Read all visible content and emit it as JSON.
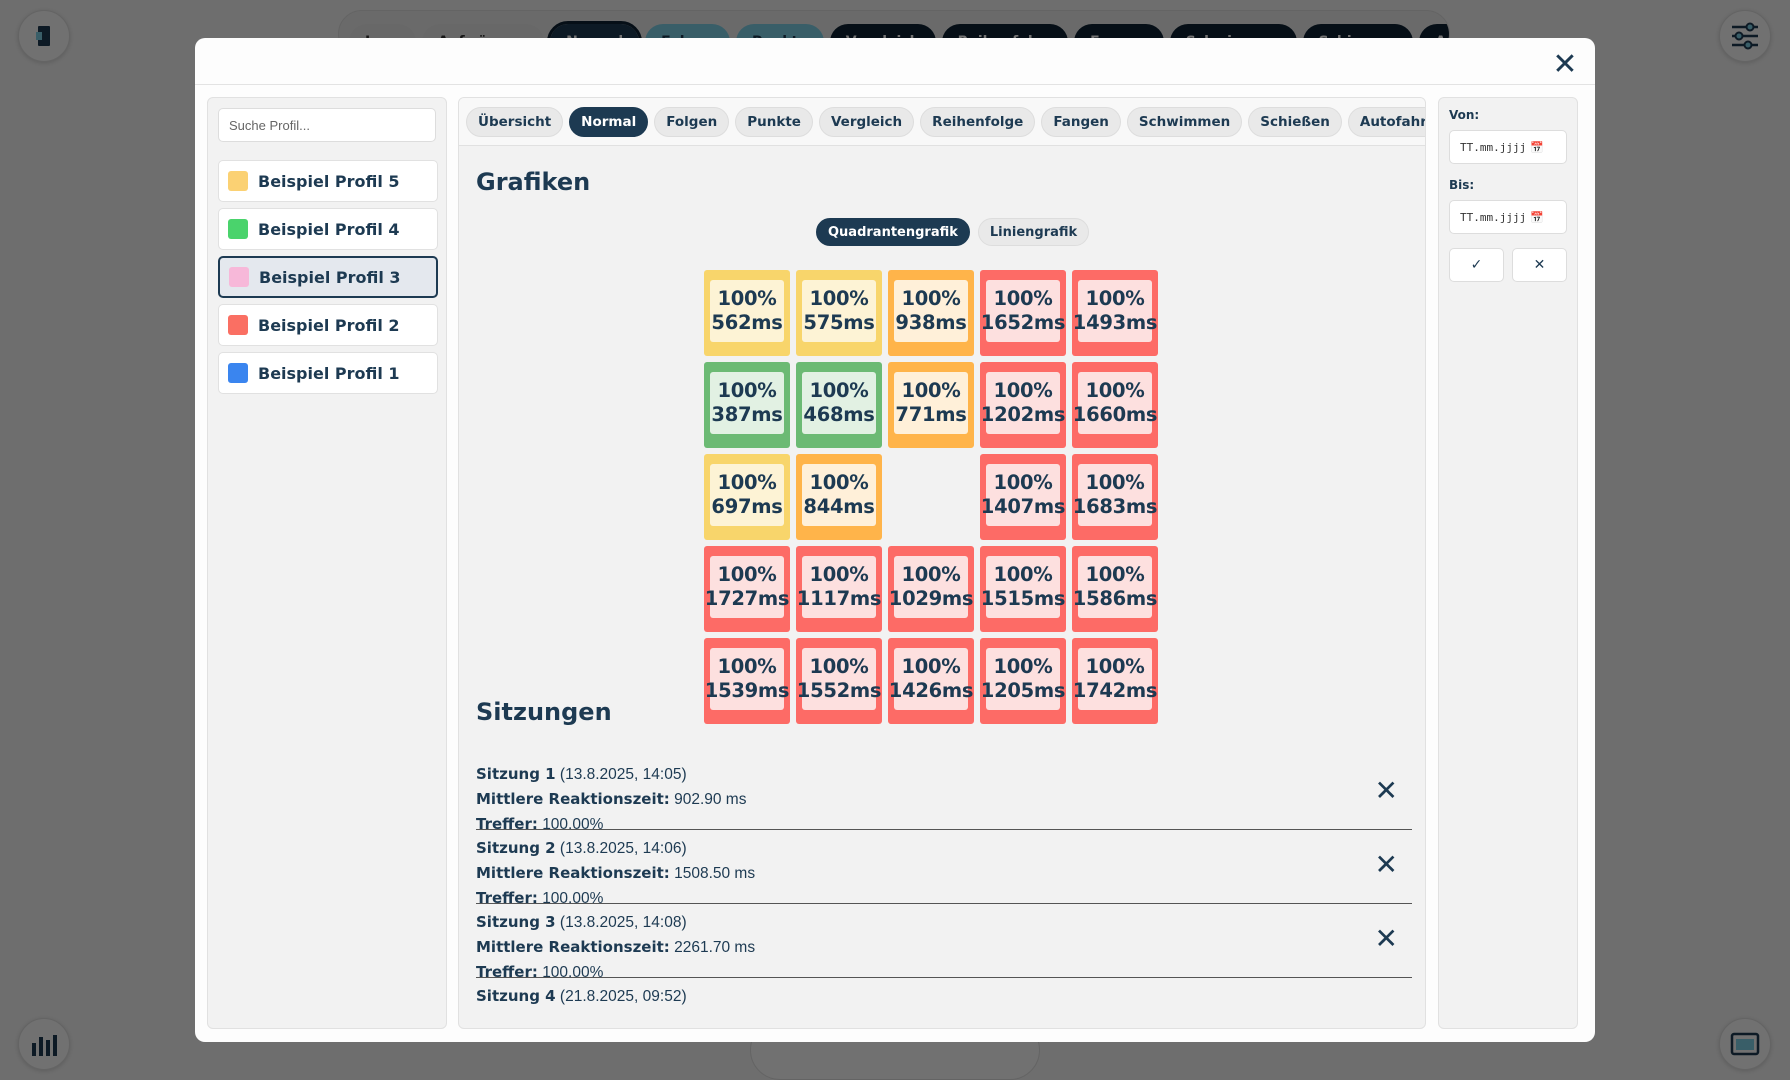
{
  "background": {
    "tabs": [
      {
        "label": "Leer",
        "style": "light"
      },
      {
        "label": "Aufwärmen",
        "style": "light"
      },
      {
        "label": "Normal",
        "style": "active"
      },
      {
        "label": "Folgen",
        "style": "teal"
      },
      {
        "label": "Punkte",
        "style": "teal"
      },
      {
        "label": "Vergleich",
        "style": "dark"
      },
      {
        "label": "Reihenfolge",
        "style": "dark"
      },
      {
        "label": "Fangen",
        "style": "dark"
      },
      {
        "label": "Schwimmen",
        "style": "dark"
      },
      {
        "label": "Schiessen",
        "style": "dark"
      },
      {
        "label": "Autofahren",
        "style": "dark"
      }
    ]
  },
  "modal": {
    "close_symbol": "✕",
    "search": {
      "placeholder": "Suche Profil..."
    },
    "profiles": [
      {
        "label": "Beispiel Profil 5",
        "color": "#fbd173",
        "selected": false
      },
      {
        "label": "Beispiel Profil 4",
        "color": "#4ad36c",
        "selected": false
      },
      {
        "label": "Beispiel Profil 3",
        "color": "#f7b8d9",
        "selected": true
      },
      {
        "label": "Beispiel Profil 2",
        "color": "#fa6f63",
        "selected": false
      },
      {
        "label": "Beispiel Profil 1",
        "color": "#3a85ef",
        "selected": false
      }
    ],
    "mode_tabs": [
      {
        "label": "Übersicht",
        "active": false
      },
      {
        "label": "Normal",
        "active": true
      },
      {
        "label": "Folgen",
        "active": false
      },
      {
        "label": "Punkte",
        "active": false
      },
      {
        "label": "Vergleich",
        "active": false
      },
      {
        "label": "Reihenfolge",
        "active": false
      },
      {
        "label": "Fangen",
        "active": false
      },
      {
        "label": "Schwimmen",
        "active": false
      },
      {
        "label": "Schießen",
        "active": false
      },
      {
        "label": "Autofahren",
        "active": false
      }
    ],
    "charts_title": "Grafiken",
    "chart_toggle": [
      {
        "label": "Quadrantengrafik",
        "active": true
      },
      {
        "label": "Liniengrafik",
        "active": false
      }
    ],
    "quadrant_grid": [
      [
        {
          "pct": "100%",
          "ms": "562ms",
          "level": "yellow"
        },
        {
          "pct": "100%",
          "ms": "575ms",
          "level": "yellow"
        },
        {
          "pct": "100%",
          "ms": "938ms",
          "level": "orange"
        },
        {
          "pct": "100%",
          "ms": "1652ms",
          "level": "red"
        },
        {
          "pct": "100%",
          "ms": "1493ms",
          "level": "red"
        }
      ],
      [
        {
          "pct": "100%",
          "ms": "387ms",
          "level": "green"
        },
        {
          "pct": "100%",
          "ms": "468ms",
          "level": "green"
        },
        {
          "pct": "100%",
          "ms": "771ms",
          "level": "orange"
        },
        {
          "pct": "100%",
          "ms": "1202ms",
          "level": "red"
        },
        {
          "pct": "100%",
          "ms": "1660ms",
          "level": "red"
        }
      ],
      [
        {
          "pct": "100%",
          "ms": "697ms",
          "level": "yellow"
        },
        {
          "pct": "100%",
          "ms": "844ms",
          "level": "orange"
        },
        null,
        {
          "pct": "100%",
          "ms": "1407ms",
          "level": "red"
        },
        {
          "pct": "100%",
          "ms": "1683ms",
          "level": "red"
        }
      ],
      [
        {
          "pct": "100%",
          "ms": "1727ms",
          "level": "red"
        },
        {
          "pct": "100%",
          "ms": "1117ms",
          "level": "red"
        },
        {
          "pct": "100%",
          "ms": "1029ms",
          "level": "red"
        },
        {
          "pct": "100%",
          "ms": "1515ms",
          "level": "red"
        },
        {
          "pct": "100%",
          "ms": "1586ms",
          "level": "red"
        }
      ],
      [
        {
          "pct": "100%",
          "ms": "1539ms",
          "level": "red"
        },
        {
          "pct": "100%",
          "ms": "1552ms",
          "level": "red"
        },
        {
          "pct": "100%",
          "ms": "1426ms",
          "level": "red"
        },
        {
          "pct": "100%",
          "ms": "1205ms",
          "level": "red"
        },
        {
          "pct": "100%",
          "ms": "1742ms",
          "level": "red"
        }
      ]
    ],
    "sessions_title": "Sitzungen",
    "sessions": [
      {
        "name": "Sitzung 1",
        "date": "(13.8.2025, 14:05)",
        "rt_label": "Mittlere Reaktionszeit:",
        "rt_value": "902.90 ms",
        "hit_label": "Treffer:",
        "hit_value": "100.00%"
      },
      {
        "name": "Sitzung 2",
        "date": "(13.8.2025, 14:06)",
        "rt_label": "Mittlere Reaktionszeit:",
        "rt_value": "1508.50 ms",
        "hit_label": "Treffer:",
        "hit_value": "100.00%"
      },
      {
        "name": "Sitzung 3",
        "date": "(13.8.2025, 14:08)",
        "rt_label": "Mittlere Reaktionszeit:",
        "rt_value": "2261.70 ms",
        "hit_label": "Treffer:",
        "hit_value": "100.00%"
      },
      {
        "name": "Sitzung 4",
        "date": "(21.8.2025, 09:52)",
        "rt_label": "",
        "rt_value": "",
        "hit_label": "",
        "hit_value": ""
      }
    ],
    "filter": {
      "from_label": "Von:",
      "to_label": "Bis:",
      "date_placeholder": "TT.mm.jjjj",
      "apply_symbol": "✓",
      "clear_symbol": "✕"
    }
  },
  "colors": {
    "accent": "#1d3a52",
    "yellow": "#f8d56b",
    "orange": "#ffb44a",
    "green": "#6cba74",
    "red": "#fd6b66"
  }
}
